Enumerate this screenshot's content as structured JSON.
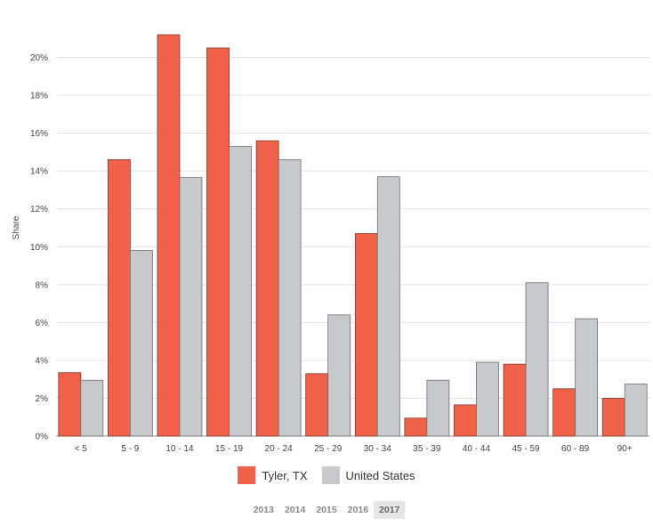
{
  "chart_data": {
    "type": "bar",
    "ylabel": "Share",
    "ylim": [
      0,
      22
    ],
    "yticks": [
      0,
      2,
      4,
      6,
      8,
      10,
      12,
      14,
      16,
      18,
      20
    ],
    "ytick_labels": [
      "0%",
      "2%",
      "4%",
      "6%",
      "8%",
      "10%",
      "12%",
      "14%",
      "16%",
      "18%",
      "20%"
    ],
    "categories": [
      "< 5",
      "5 - 9",
      "10 - 14",
      "15 - 19",
      "20 - 24",
      "25 - 29",
      "30 - 34",
      "35 - 39",
      "40 - 44",
      "45 - 59",
      "60 - 89",
      "90+"
    ],
    "series": [
      {
        "name": "Tyler, TX",
        "color": "#f0624a",
        "values": [
          3.35,
          14.6,
          21.2,
          20.5,
          15.6,
          3.3,
          10.7,
          0.95,
          1.65,
          3.8,
          2.5,
          2.0
        ]
      },
      {
        "name": "United States",
        "color": "#c8c9cc",
        "values": [
          2.95,
          9.8,
          13.65,
          15.3,
          14.6,
          6.4,
          13.7,
          2.95,
          3.9,
          8.1,
          6.2,
          2.75
        ]
      }
    ],
    "grid": true,
    "legend": "bottom"
  },
  "years": {
    "items": [
      "2013",
      "2014",
      "2015",
      "2016",
      "2017"
    ],
    "selected": "2017"
  }
}
